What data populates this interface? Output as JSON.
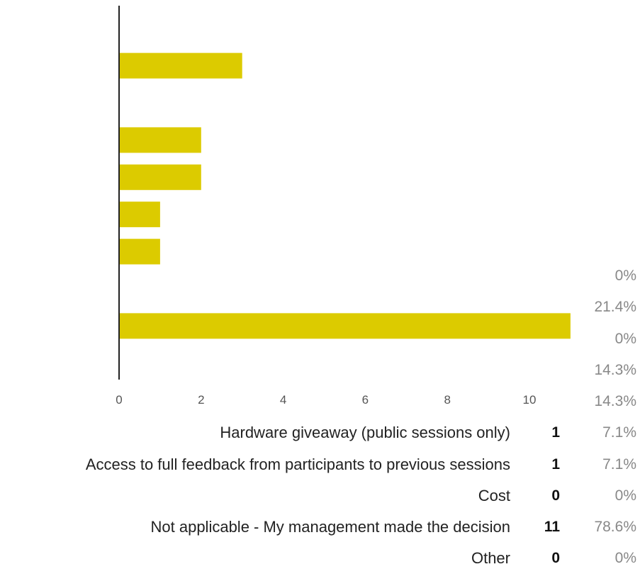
{
  "chart_data": {
    "type": "bar",
    "orientation": "horizontal",
    "bar_color": "#dccb00",
    "xlim": [
      0,
      11
    ],
    "xticks": [
      0,
      2,
      4,
      6,
      8,
      10
    ],
    "bar_values": [
      0,
      3,
      0,
      2,
      2,
      1,
      1,
      0,
      11,
      0
    ],
    "stacked_percentages": [
      "0%",
      "21.4%",
      "0%",
      "14.3%",
      "14.3%"
    ],
    "rows": [
      {
        "label": "Hardware giveaway (public sessions only)",
        "count": "1",
        "percent": "7.1%"
      },
      {
        "label": "Access to full feedback from participants to previous sessions",
        "count": "1",
        "percent": "7.1%"
      },
      {
        "label": "Cost",
        "count": "0",
        "percent": "0%"
      },
      {
        "label": "Not applicable - My management made the decision",
        "count": "11",
        "percent": "78.6%"
      },
      {
        "label": "Other",
        "count": "0",
        "percent": "0%"
      }
    ]
  }
}
